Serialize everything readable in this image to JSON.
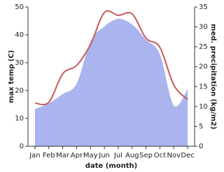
{
  "chart_data": {
    "type": "line",
    "x_label": "date (month)",
    "y_label": "max temp (C)",
    "y2_label": "med. precipitation (kg/m2)",
    "categories": [
      "Jan",
      "Feb",
      "Mar",
      "Apr",
      "May",
      "Jun",
      "Jul",
      "Aug",
      "Sep",
      "Oct",
      "Nov",
      "Dec"
    ],
    "series": [
      {
        "name": "max temp",
        "type": "line",
        "color": "#c85a5a",
        "values": [
          15.5,
          15.8,
          26,
          29,
          36.5,
          48,
          47,
          47.5,
          38.8,
          35.5,
          22,
          16.8
        ]
      },
      {
        "name": "precipitation",
        "type": "area",
        "axis": "y2",
        "color": "#aab4ee",
        "values": [
          9.3,
          10.8,
          13.1,
          15.7,
          26.3,
          30.1,
          32,
          30.6,
          26.8,
          23.1,
          10.2,
          14.4
        ]
      }
    ],
    "ylim": [
      0,
      50
    ],
    "yticks": [
      0,
      10,
      20,
      30,
      40,
      50
    ],
    "y2lim": [
      0,
      35
    ],
    "y2ticks": [
      0,
      5,
      10,
      15,
      20,
      25,
      30,
      35
    ]
  }
}
